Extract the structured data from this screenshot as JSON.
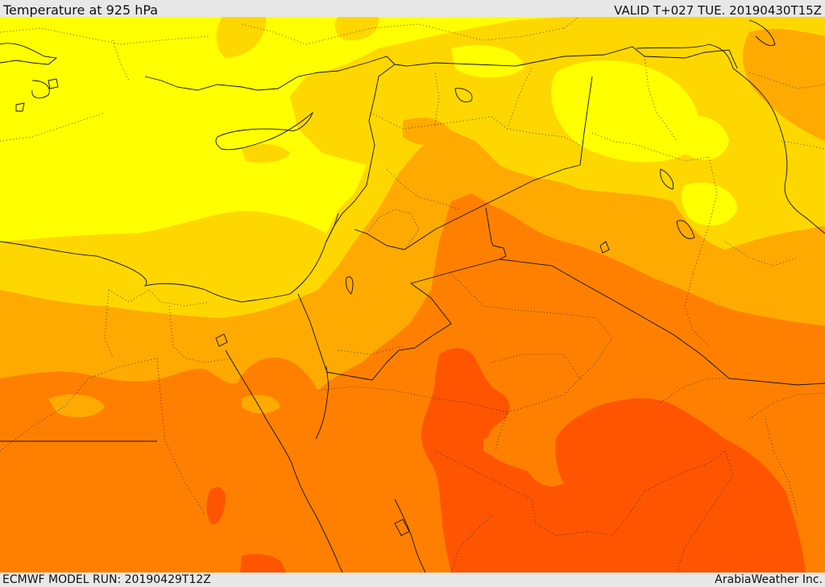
{
  "header": {
    "title": "Temperature at 925 hPa",
    "valid": "VALID T+027 TUE. 20190430T15Z"
  },
  "footer": {
    "model_run": "ECMWF MODEL RUN: 20190429T12Z",
    "credit": "ArabiaWeather Inc."
  },
  "colors": {
    "band1": "#ffff00",
    "band2": "#ffd700",
    "band3": "#ffaa00",
    "band4": "#ff8000",
    "band5": "#ff5500",
    "coast": "#111111",
    "border": "#111111"
  }
}
